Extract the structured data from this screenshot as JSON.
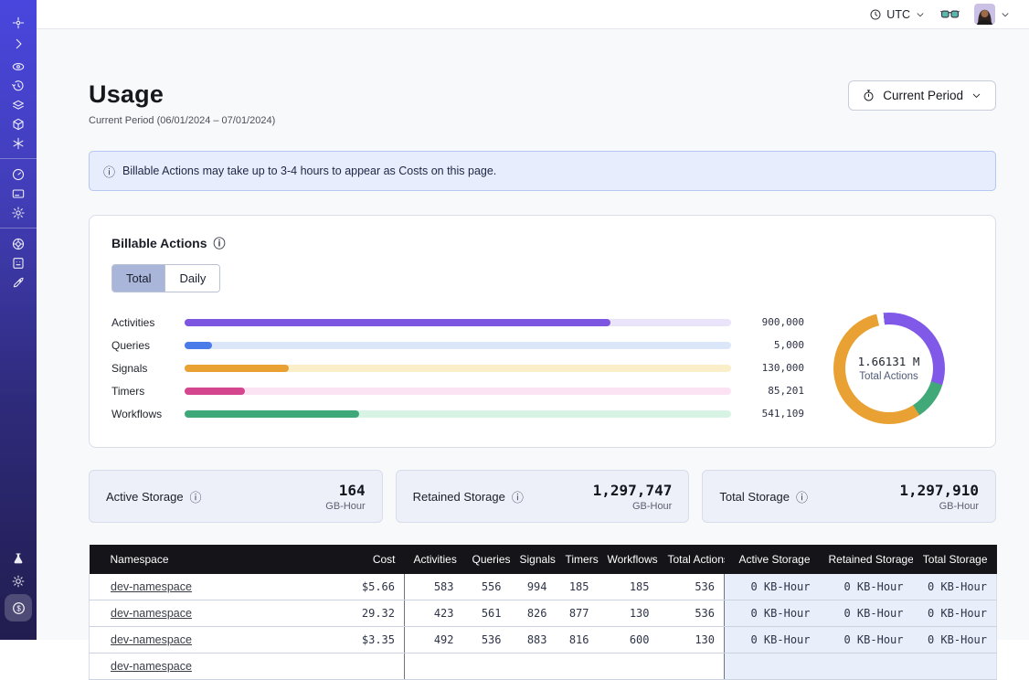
{
  "colors": {
    "sidebar_top": "#4946DE",
    "sidebar_bottom": "#211D4F",
    "banner_bg": "#E7EDFC",
    "banner_border": "#B7C6F2",
    "tab_active_bg": "#A9B5D9",
    "table_header_bg": "#141419",
    "storage_cell_bg": "#E8EEFA",
    "storage_card_bg": "#EDF0F9"
  },
  "topbar": {
    "timezone": "UTC",
    "icons": [
      "clock-icon",
      "glasses-icon",
      "user-avatar",
      "chevron-down-icon"
    ]
  },
  "sidebar": {
    "items": [
      "logo",
      "collapse-chevron",
      "namespaces-eye",
      "schedules-clock",
      "layers",
      "deployments-cube",
      "nexus-asterisk",
      "metering-gauge",
      "billing-card",
      "settings-gear",
      "support-lifebuoy",
      "feedback-doc",
      "getting-started-rocket",
      "labs-flask",
      "theme-sun",
      "usage-coin-active"
    ]
  },
  "header": {
    "title": "Usage",
    "subtitle": "Current Period (06/01/2024 – 07/01/2024)",
    "period_button_label": "Current Period"
  },
  "banner": {
    "text": "Billable Actions may take up to 3-4 hours to appear as Costs on this page."
  },
  "billable": {
    "title": "Billable Actions",
    "tabs": [
      {
        "label": "Total",
        "active": true
      },
      {
        "label": "Daily",
        "active": false
      }
    ]
  },
  "chart_data": [
    {
      "type": "bar",
      "title": "Billable Actions (Total)",
      "categories": [
        "Activities",
        "Queries",
        "Signals",
        "Timers",
        "Workflows"
      ],
      "values": [
        900000,
        5000,
        130000,
        85201,
        541109
      ],
      "value_labels": [
        "900,000",
        "5,000",
        "130,000",
        "85,201",
        "541,109"
      ],
      "fill_percents": [
        78,
        5,
        19,
        11,
        32
      ],
      "colors": [
        "#7C56E0",
        "#4A7BE8",
        "#E8A132",
        "#D4478E",
        "#3FA878"
      ],
      "track_colors": [
        "#EAE4FA",
        "#DCE6F9",
        "#FAEFC9",
        "#FBE3F3",
        "#D7F3E4"
      ],
      "xlabel": "",
      "ylabel": ""
    },
    {
      "type": "pie",
      "title": "Total Actions donut",
      "center_value": "1.66131 M",
      "center_label": "Total Actions",
      "segments": [
        {
          "color": "#8159E8",
          "percent": 31.5
        },
        {
          "color": "#41A878",
          "percent": 11
        },
        {
          "color": "#E8A132",
          "percent": 55.5
        },
        {
          "color": "#FFFFFF",
          "percent": 2
        }
      ],
      "start_angle_deg": -6
    }
  ],
  "storage_cards": [
    {
      "label": "Active Storage",
      "value": "164",
      "unit": "GB-Hour"
    },
    {
      "label": "Retained Storage",
      "value": "1,297,747",
      "unit": "GB-Hour"
    },
    {
      "label": "Total Storage",
      "value": "1,297,910",
      "unit": "GB-Hour"
    }
  ],
  "table": {
    "columns": [
      "Namespace",
      "Cost",
      "Activities",
      "Queries",
      "Signals",
      "Timers",
      "Workflows",
      "Total Actions",
      "Active Storage",
      "Retained Storage",
      "Total Storage"
    ],
    "rows": [
      {
        "namespace": "dev-namespace",
        "cost": "$5.66",
        "activities": "583",
        "queries": "556",
        "signals": "994",
        "timers": "185",
        "workflows": "185",
        "total_actions": "536",
        "active_storage": "0 KB-Hour",
        "retained_storage": "0 KB-Hour",
        "total_storage": "0 KB-Hour"
      },
      {
        "namespace": "dev-namespace",
        "cost": "29.32",
        "activities": "423",
        "queries": "561",
        "signals": "826",
        "timers": "877",
        "workflows": "130",
        "total_actions": "536",
        "active_storage": "0 KB-Hour",
        "retained_storage": "0 KB-Hour",
        "total_storage": "0 KB-Hour"
      },
      {
        "namespace": "dev-namespace",
        "cost": "$3.35",
        "activities": "492",
        "queries": "536",
        "signals": "883",
        "timers": "816",
        "workflows": "600",
        "total_actions": "130",
        "active_storage": "0 KB-Hour",
        "retained_storage": "0 KB-Hour",
        "total_storage": "0 KB-Hour"
      },
      {
        "namespace": "dev-namespace",
        "cost": "",
        "activities": "",
        "queries": "",
        "signals": "",
        "timers": "",
        "workflows": "",
        "total_actions": "",
        "active_storage": "",
        "retained_storage": "",
        "total_storage": ""
      }
    ]
  }
}
